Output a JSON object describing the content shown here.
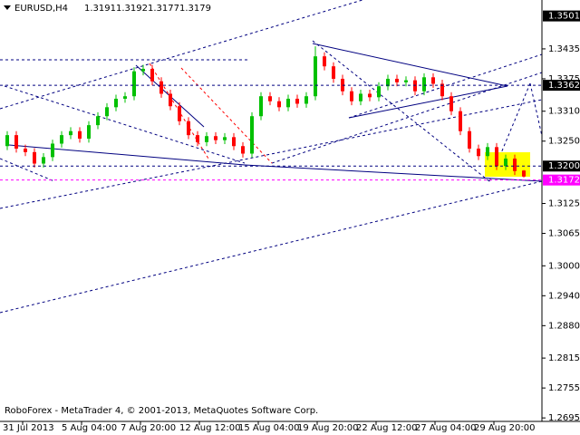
{
  "chart_data": {
    "type": "candlestick",
    "symbol": "EURUSD,H4",
    "header_ohlc": [
      1.3191,
      1.3192,
      1.3177,
      1.3179
    ],
    "footer": "RoboForex - MetaTrader 4, © 2001-2013, MetaQuotes Software Corp.",
    "x_labels": [
      "31 Jul 2013",
      "5 Aug 04:00",
      "7 Aug 20:00",
      "12 Aug 12:00",
      "15 Aug 04:00",
      "19 Aug 20:00",
      "22 Aug 12:00",
      "27 Aug 04:00",
      "29 Aug 20:00"
    ],
    "ylim": [
      1.2688,
      1.3533
    ],
    "yticks": [
      1.3435,
      1.3375,
      {
        "value": 1.331,
        "label": "1.3310"
      },
      {
        "value": 1.325,
        "label": "1.3250"
      },
      1.3125,
      1.3065,
      {
        "value": 1.3,
        "label": "1.3000"
      },
      {
        "value": 1.294,
        "label": "1.2940"
      },
      {
        "value": 1.288,
        "label": "1.2880"
      },
      1.2815,
      1.2755,
      1.2695
    ],
    "levels": [
      {
        "value": 1.3501,
        "label": "1.3501",
        "box_color": "#000000"
      },
      {
        "value": 1.3362,
        "label": "1.3362",
        "box_color": "#000000",
        "line_color": "#000080"
      },
      {
        "value": 1.32,
        "label": "1.3200",
        "box_color": "#000000",
        "line_color": "#000080"
      },
      {
        "value": 1.3172,
        "label": "1.3172",
        "box_color": "#ff00ff",
        "line_color": "#ff00ff"
      }
    ],
    "up_color": "#00c000",
    "down_color": "#ff0000",
    "open": [
      1.324,
      1.3262,
      1.3235,
      1.3228,
      1.3205,
      1.3218,
      1.3245,
      1.3262,
      1.327,
      1.3255,
      1.3282,
      1.33,
      1.3318,
      1.3335,
      1.334,
      1.339,
      1.3395,
      1.337,
      1.3345,
      1.332,
      1.329,
      1.3262,
      1.3248,
      1.326,
      1.3252,
      1.3258,
      1.324,
      1.3225,
      1.33,
      1.334,
      1.333,
      1.3318,
      1.3335,
      1.3325,
      1.334,
      1.342,
      1.34,
      1.3375,
      1.335,
      1.333,
      1.3345,
      1.3338,
      1.336,
      1.3375,
      1.3368,
      1.3372,
      1.335,
      1.3378,
      1.3365,
      1.334,
      1.331,
      1.327,
      1.3235,
      1.322,
      1.3238,
      1.32,
      1.3215,
      1.3191
    ],
    "high": [
      1.327,
      1.327,
      1.3243,
      1.3236,
      1.3226,
      1.3253,
      1.327,
      1.3278,
      1.3278,
      1.329,
      1.3308,
      1.3326,
      1.3343,
      1.3348,
      1.3398,
      1.3403,
      1.3403,
      1.3378,
      1.3353,
      1.3328,
      1.3298,
      1.327,
      1.3268,
      1.3268,
      1.3266,
      1.3266,
      1.3248,
      1.3308,
      1.3348,
      1.3348,
      1.3338,
      1.3343,
      1.3343,
      1.3348,
      1.344,
      1.3428,
      1.3408,
      1.3383,
      1.3358,
      1.3353,
      1.3353,
      1.3368,
      1.3383,
      1.3383,
      1.338,
      1.338,
      1.3386,
      1.3386,
      1.3373,
      1.3348,
      1.3318,
      1.3278,
      1.3243,
      1.3246,
      1.3246,
      1.3223,
      1.3223,
      1.3192
    ],
    "low": [
      1.3232,
      1.3227,
      1.322,
      1.3197,
      1.3197,
      1.321,
      1.3237,
      1.3254,
      1.3247,
      1.3247,
      1.3274,
      1.3292,
      1.331,
      1.3327,
      1.3332,
      1.3382,
      1.3362,
      1.3337,
      1.3312,
      1.3282,
      1.3254,
      1.324,
      1.324,
      1.3244,
      1.3244,
      1.3232,
      1.3217,
      1.3217,
      1.3292,
      1.3322,
      1.331,
      1.331,
      1.3317,
      1.3317,
      1.3332,
      1.3392,
      1.3367,
      1.3342,
      1.3322,
      1.3322,
      1.333,
      1.333,
      1.3352,
      1.336,
      1.336,
      1.3342,
      1.3342,
      1.3357,
      1.3332,
      1.3302,
      1.3262,
      1.3227,
      1.3212,
      1.3212,
      1.3192,
      1.3192,
      1.3182,
      1.3177
    ],
    "close": [
      1.3262,
      1.3235,
      1.3228,
      1.3205,
      1.3218,
      1.3245,
      1.3262,
      1.327,
      1.3255,
      1.3282,
      1.33,
      1.3318,
      1.3335,
      1.334,
      1.339,
      1.3395,
      1.337,
      1.3345,
      1.332,
      1.329,
      1.3262,
      1.3248,
      1.326,
      1.3252,
      1.3258,
      1.324,
      1.3225,
      1.33,
      1.334,
      1.333,
      1.3318,
      1.3335,
      1.3325,
      1.334,
      1.342,
      1.34,
      1.3375,
      1.335,
      1.333,
      1.3345,
      1.3338,
      1.336,
      1.3375,
      1.3368,
      1.3372,
      1.335,
      1.3378,
      1.3365,
      1.334,
      1.331,
      1.327,
      1.3235,
      1.322,
      1.3238,
      1.32,
      1.3215,
      1.319,
      1.3179
    ]
  }
}
